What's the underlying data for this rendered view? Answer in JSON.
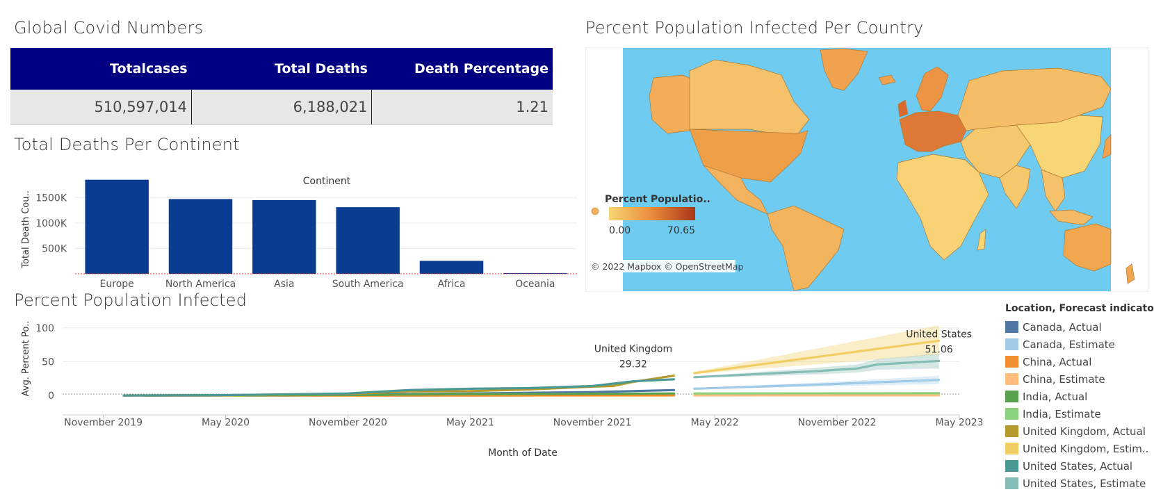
{
  "titles": {
    "global": "Global Covid Numbers",
    "continent": "Total Deaths Per Continent",
    "map": "Percent Population Infected Per Country",
    "line": "Percent Population Infected"
  },
  "kpi": {
    "headers": [
      "Totalcases",
      "Total Deaths",
      "Death Percentage"
    ],
    "values": [
      "510,597,014",
      "6,188,021",
      "1.21"
    ]
  },
  "colors": {
    "kpi_header": "#000080",
    "bar": "#0a3d91",
    "ocean": "#6fcbf0",
    "map_low": "#f8d674",
    "map_high": "#a8361a"
  },
  "chart_data": [
    {
      "type": "bar",
      "title": "Total Deaths Per Continent",
      "header_label": "Continent",
      "ylabel": "Total Death Cou..",
      "categories": [
        "Europe",
        "North America",
        "Asia",
        "South America",
        "Africa",
        "Oceania"
      ],
      "values": [
        1850000,
        1470000,
        1450000,
        1310000,
        255000,
        15000
      ],
      "ylim": [
        0,
        1900000
      ],
      "yticks": [
        500000,
        1000000,
        1500000
      ],
      "ytick_labels": [
        "500K",
        "1000K",
        "1500K"
      ],
      "grid": true
    },
    {
      "type": "line",
      "title": "Percent Population Infected",
      "xlabel": "Month of Date",
      "ylabel": "Avg. Percent Po..",
      "xlim": [
        "2019-09",
        "2023-05"
      ],
      "ylim": [
        -3,
        105
      ],
      "yticks": [
        0,
        50,
        100
      ],
      "xticks": [
        "2019-11",
        "2020-05",
        "2020-11",
        "2021-05",
        "2021-11",
        "2022-05",
        "2022-11",
        "2023-05"
      ],
      "xtick_labels": [
        "November 2019",
        "May 2020",
        "November 2020",
        "May 2021",
        "November 2021",
        "May 2022",
        "November 2022",
        "May 2023"
      ],
      "legend_title": "Location, Forecast indicator",
      "legend_placement": "right",
      "series": [
        {
          "name": "Canada, Actual",
          "color": "#4e79a7",
          "x": [
            "2020-01",
            "2020-11",
            "2021-05",
            "2021-11",
            "2022-03"
          ],
          "y": [
            0,
            1,
            3,
            5,
            8
          ]
        },
        {
          "name": "Canada, Estimate",
          "color": "#a0cbe8",
          "x": [
            "2022-04",
            "2022-10",
            "2023-04"
          ],
          "y": [
            10,
            16,
            23
          ],
          "band_lo": [
            9,
            13,
            17
          ],
          "band_hi": [
            11,
            19,
            29
          ]
        },
        {
          "name": "China, Actual",
          "color": "#f28e2b",
          "x": [
            "2020-01",
            "2021-05",
            "2022-03"
          ],
          "y": [
            0,
            0,
            0.1
          ]
        },
        {
          "name": "China, Estimate",
          "color": "#ffbe7d",
          "x": [
            "2022-04",
            "2023-04"
          ],
          "y": [
            0.1,
            0.2
          ]
        },
        {
          "name": "India, Actual",
          "color": "#59a14f",
          "x": [
            "2020-01",
            "2020-11",
            "2021-05",
            "2021-11",
            "2022-03"
          ],
          "y": [
            0,
            0.6,
            2,
            2.5,
            3
          ]
        },
        {
          "name": "India, Estimate",
          "color": "#8cd17d",
          "x": [
            "2022-04",
            "2023-04"
          ],
          "y": [
            3,
            3.3
          ]
        },
        {
          "name": "United Kingdom, Actual",
          "color": "#b6992d",
          "x": [
            "2019-12",
            "2020-05",
            "2020-11",
            "2021-02",
            "2021-05",
            "2021-08",
            "2021-11",
            "2021-12",
            "2022-01",
            "2022-03"
          ],
          "y": [
            0,
            0.5,
            2,
            6,
            6.5,
            9,
            13,
            14,
            20,
            29.32
          ]
        },
        {
          "name": "United Kingdom, Estim..",
          "color": "#f1ce63",
          "x": [
            "2022-04",
            "2023-04"
          ],
          "y": [
            33,
            81
          ],
          "band_lo": [
            32,
            60
          ],
          "band_hi": [
            35,
            104
          ]
        },
        {
          "name": "United States, Actual",
          "color": "#499894",
          "x": [
            "2019-12",
            "2020-05",
            "2020-11",
            "2021-02",
            "2021-05",
            "2021-08",
            "2021-11",
            "2022-01",
            "2022-03"
          ],
          "y": [
            0,
            0.5,
            3,
            8,
            10,
            11,
            14,
            21,
            24
          ]
        },
        {
          "name": "United States, Estimate",
          "color": "#86bcb6",
          "x": [
            "2022-04",
            "2022-10",
            "2022-12",
            "2023-01",
            "2023-04"
          ],
          "y": [
            27,
            36,
            40,
            46,
            51.06
          ],
          "band_lo": [
            26,
            31,
            34,
            38,
            40
          ],
          "band_hi": [
            28,
            41,
            46,
            54,
            62
          ]
        }
      ],
      "annotations": [
        {
          "text": "United Kingdom",
          "value": "29.32",
          "x": "2022-01",
          "y": 29.32
        },
        {
          "text": "United States",
          "value": "51.06",
          "x": "2023-04",
          "y": 51.06
        }
      ]
    }
  ],
  "map": {
    "legend_title": "Percent Populatio..",
    "legend_min": "0.00",
    "legend_max": "70.65",
    "attribution": "© 2022 Mapbox © OpenStreetMap"
  }
}
